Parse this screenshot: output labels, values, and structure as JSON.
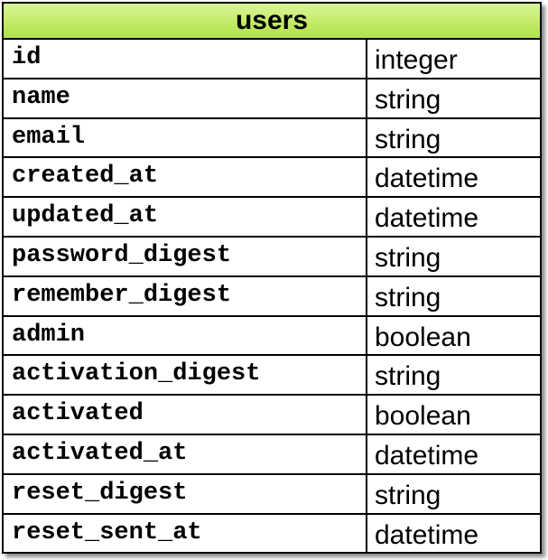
{
  "table": {
    "title": "users",
    "header_color": "#c5ec6a",
    "columns": [
      {
        "name": "id",
        "type": "integer"
      },
      {
        "name": "name",
        "type": "string"
      },
      {
        "name": "email",
        "type": "string"
      },
      {
        "name": "created_at",
        "type": "datetime"
      },
      {
        "name": "updated_at",
        "type": "datetime"
      },
      {
        "name": "password_digest",
        "type": "string"
      },
      {
        "name": "remember_digest",
        "type": "string"
      },
      {
        "name": "admin",
        "type": "boolean"
      },
      {
        "name": "activation_digest",
        "type": "string"
      },
      {
        "name": "activated",
        "type": "boolean"
      },
      {
        "name": "activated_at",
        "type": "datetime"
      },
      {
        "name": "reset_digest",
        "type": "string"
      },
      {
        "name": "reset_sent_at",
        "type": "datetime"
      }
    ]
  }
}
